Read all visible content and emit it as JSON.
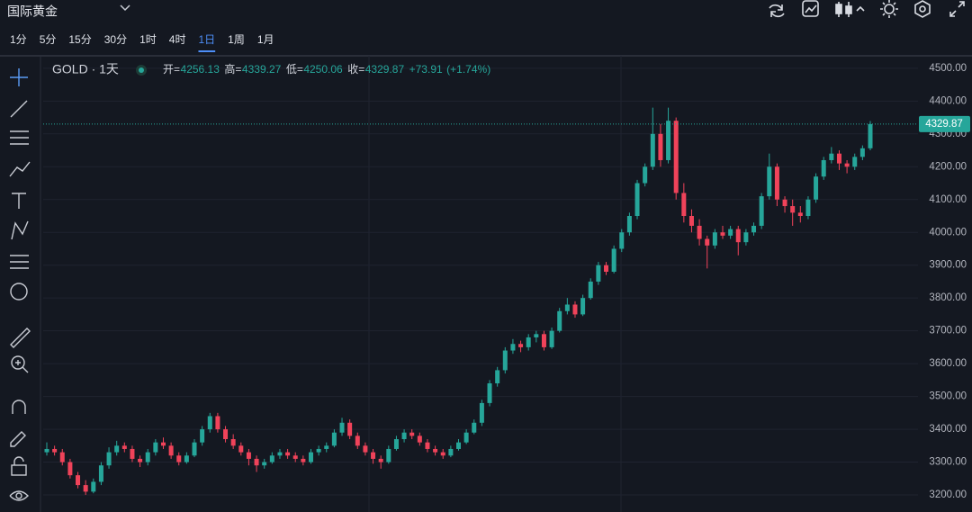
{
  "header": {
    "symbol_name": "国际黄金",
    "timeframes": [
      "1分",
      "5分",
      "15分",
      "30分",
      "1时",
      "4时",
      "1日",
      "1周",
      "1月"
    ],
    "active_timeframe": 6
  },
  "chart_data": {
    "type": "candlestick",
    "title": "GOLD · 1天",
    "ohlc_labels": [
      "开=",
      "高=",
      "低=",
      "收="
    ],
    "change": "+73.91",
    "change_pct": "(+1.74%)",
    "up_color": "#26a69a",
    "down_color": "#f0435a",
    "ylim": [
      3148,
      4538
    ],
    "yticks": [
      {
        "value": 3200,
        "label": "3200.00"
      },
      {
        "value": 3300,
        "label": "3300.00"
      },
      {
        "value": 3400,
        "label": "3400.00"
      },
      {
        "value": 3500,
        "label": "3500.00"
      },
      {
        "value": 3600,
        "label": "3600.00"
      },
      {
        "value": 3700,
        "label": "3700.00"
      },
      {
        "value": 3800,
        "label": "3800.00"
      },
      {
        "value": 3900,
        "label": "3900.00"
      },
      {
        "value": 4000,
        "label": "4000.00"
      },
      {
        "value": 4100,
        "label": "4100.00"
      },
      {
        "value": 4200,
        "label": "4200.00"
      },
      {
        "value": 4300,
        "label": "4300.00"
      },
      {
        "value": 4400,
        "label": "4400.00"
      },
      {
        "value": 4500,
        "label": "4500.00"
      }
    ],
    "candles": [
      [
        3330,
        3360,
        3320,
        3340
      ],
      [
        3340,
        3350,
        3320,
        3330
      ],
      [
        3330,
        3340,
        3290,
        3300
      ],
      [
        3300,
        3310,
        3250,
        3260
      ],
      [
        3260,
        3270,
        3220,
        3230
      ],
      [
        3230,
        3245,
        3200,
        3210
      ],
      [
        3210,
        3250,
        3205,
        3240
      ],
      [
        3240,
        3300,
        3230,
        3290
      ],
      [
        3290,
        3345,
        3280,
        3330
      ],
      [
        3330,
        3365,
        3320,
        3350
      ],
      [
        3350,
        3360,
        3330,
        3340
      ],
      [
        3340,
        3350,
        3300,
        3310
      ],
      [
        3310,
        3320,
        3285,
        3300
      ],
      [
        3300,
        3340,
        3290,
        3330
      ],
      [
        3330,
        3370,
        3320,
        3360
      ],
      [
        3360,
        3375,
        3340,
        3350
      ],
      [
        3350,
        3360,
        3310,
        3320
      ],
      [
        3320,
        3330,
        3290,
        3300
      ],
      [
        3300,
        3330,
        3295,
        3320
      ],
      [
        3320,
        3370,
        3315,
        3360
      ],
      [
        3360,
        3410,
        3350,
        3400
      ],
      [
        3400,
        3450,
        3390,
        3440
      ],
      [
        3440,
        3450,
        3390,
        3400
      ],
      [
        3400,
        3410,
        3360,
        3370
      ],
      [
        3370,
        3385,
        3340,
        3350
      ],
      [
        3350,
        3360,
        3320,
        3330
      ],
      [
        3330,
        3340,
        3290,
        3310
      ],
      [
        3310,
        3320,
        3270,
        3290
      ],
      [
        3290,
        3310,
        3280,
        3300
      ],
      [
        3300,
        3330,
        3295,
        3320
      ],
      [
        3320,
        3340,
        3310,
        3330
      ],
      [
        3330,
        3340,
        3310,
        3320
      ],
      [
        3320,
        3330,
        3300,
        3310
      ],
      [
        3310,
        3320,
        3290,
        3300
      ],
      [
        3300,
        3340,
        3295,
        3330
      ],
      [
        3330,
        3350,
        3320,
        3340
      ],
      [
        3340,
        3360,
        3330,
        3350
      ],
      [
        3350,
        3400,
        3345,
        3390
      ],
      [
        3390,
        3435,
        3380,
        3420
      ],
      [
        3420,
        3430,
        3370,
        3380
      ],
      [
        3380,
        3390,
        3340,
        3350
      ],
      [
        3350,
        3360,
        3320,
        3330
      ],
      [
        3330,
        3340,
        3295,
        3310
      ],
      [
        3310,
        3320,
        3280,
        3300
      ],
      [
        3300,
        3350,
        3295,
        3340
      ],
      [
        3340,
        3380,
        3335,
        3370
      ],
      [
        3370,
        3400,
        3360,
        3390
      ],
      [
        3390,
        3400,
        3370,
        3380
      ],
      [
        3380,
        3390,
        3350,
        3360
      ],
      [
        3360,
        3370,
        3330,
        3340
      ],
      [
        3340,
        3350,
        3320,
        3330
      ],
      [
        3330,
        3340,
        3310,
        3320
      ],
      [
        3320,
        3350,
        3315,
        3340
      ],
      [
        3340,
        3370,
        3335,
        3360
      ],
      [
        3360,
        3400,
        3355,
        3390
      ],
      [
        3390,
        3430,
        3385,
        3420
      ],
      [
        3420,
        3490,
        3410,
        3480
      ],
      [
        3480,
        3550,
        3470,
        3540
      ],
      [
        3540,
        3590,
        3530,
        3580
      ],
      [
        3580,
        3650,
        3570,
        3640
      ],
      [
        3640,
        3675,
        3630,
        3660
      ],
      [
        3660,
        3670,
        3635,
        3650
      ],
      [
        3650,
        3690,
        3640,
        3680
      ],
      [
        3680,
        3700,
        3665,
        3690
      ],
      [
        3690,
        3700,
        3640,
        3650
      ],
      [
        3650,
        3710,
        3645,
        3700
      ],
      [
        3700,
        3770,
        3695,
        3760
      ],
      [
        3760,
        3800,
        3750,
        3780
      ],
      [
        3780,
        3790,
        3740,
        3750
      ],
      [
        3750,
        3810,
        3745,
        3800
      ],
      [
        3800,
        3860,
        3795,
        3850
      ],
      [
        3850,
        3910,
        3840,
        3900
      ],
      [
        3900,
        3910,
        3870,
        3880
      ],
      [
        3880,
        3960,
        3875,
        3950
      ],
      [
        3950,
        4010,
        3940,
        4000
      ],
      [
        4000,
        4060,
        3990,
        4050
      ],
      [
        4050,
        4160,
        4040,
        4150
      ],
      [
        4150,
        4210,
        4140,
        4200
      ],
      [
        4200,
        4380,
        4190,
        4300
      ],
      [
        4300,
        4330,
        4200,
        4220
      ],
      [
        4220,
        4380,
        4210,
        4340
      ],
      [
        4340,
        4350,
        4100,
        4120
      ],
      [
        4120,
        4150,
        4030,
        4050
      ],
      [
        4050,
        4070,
        4000,
        4020
      ],
      [
        4020,
        4040,
        3960,
        3980
      ],
      [
        3980,
        3990,
        3890,
        3960
      ],
      [
        3960,
        4010,
        3950,
        4000
      ],
      [
        4000,
        4020,
        3980,
        3990
      ],
      [
        3990,
        4020,
        3980,
        4010
      ],
      [
        4010,
        4020,
        3930,
        3970
      ],
      [
        3970,
        4010,
        3960,
        4000
      ],
      [
        4000,
        4030,
        3990,
        4020
      ],
      [
        4020,
        4120,
        4010,
        4110
      ],
      [
        4110,
        4240,
        4100,
        4200
      ],
      [
        4200,
        4210,
        4080,
        4100
      ],
      [
        4100,
        4110,
        4060,
        4080
      ],
      [
        4080,
        4100,
        4020,
        4060
      ],
      [
        4060,
        4080,
        4030,
        4050
      ],
      [
        4050,
        4110,
        4040,
        4100
      ],
      [
        4100,
        4180,
        4090,
        4170
      ],
      [
        4170,
        4230,
        4160,
        4220
      ],
      [
        4220,
        4260,
        4210,
        4240
      ],
      [
        4240,
        4250,
        4190,
        4210
      ],
      [
        4210,
        4220,
        4180,
        4200
      ],
      [
        4200,
        4240,
        4190,
        4230
      ],
      [
        4230,
        4265,
        4220,
        4256.13
      ],
      [
        4256.13,
        4339.27,
        4250.06,
        4329.87
      ]
    ]
  }
}
